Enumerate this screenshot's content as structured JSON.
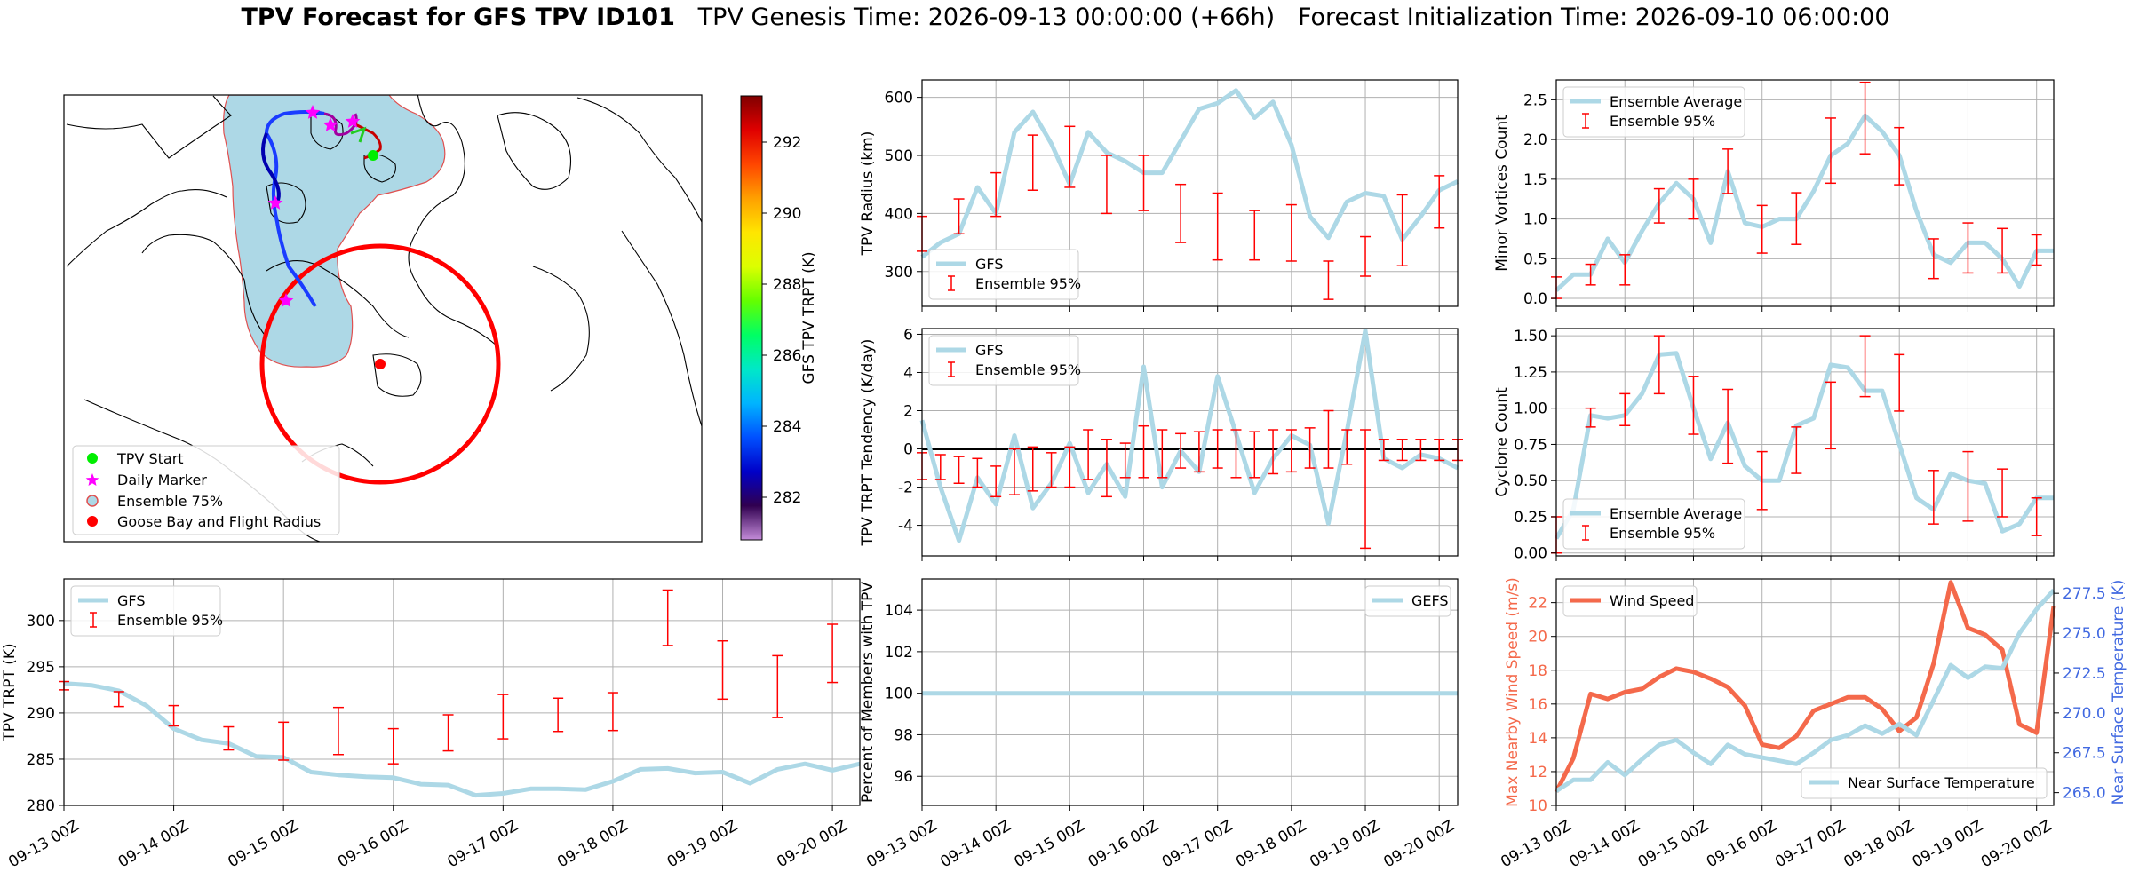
{
  "figure": {
    "title_bold": "TPV Forecast for GFS TPV ID101",
    "title_rest": "TPV Genesis Time: 2026-09-13 00:00:00 (+66h)   Forecast Initialization Time: 2026-09-10 06:00:00"
  },
  "colors": {
    "gfs": "#add8e6",
    "ensemble": "#ff0000",
    "wind": "#f4694b",
    "temp_axis": "#4169e1",
    "map_fill": "#add8e6",
    "track_start": "#00ee00",
    "daily_marker": "#ff00ff",
    "goose_bay": "#ff0000"
  },
  "x_ticks": [
    "09-13 00Z",
    "09-14 00Z",
    "09-15 00Z",
    "09-16 00Z",
    "09-17 00Z",
    "09-18 00Z",
    "09-19 00Z",
    "09-20 00Z"
  ],
  "map": {
    "colorbar": {
      "label": "GFS TPV TRPT (K)",
      "range": [
        280.8,
        293.3
      ],
      "ticks": [
        282,
        284,
        286,
        288,
        290,
        292
      ],
      "colormap": [
        "#c48cd9",
        "#300050",
        "#0000c8",
        "#0050ff",
        "#00b4ff",
        "#00e8c8",
        "#00ff64",
        "#64ff00",
        "#dcff00",
        "#ffe600",
        "#ffa000",
        "#ff4600",
        "#e00000",
        "#800000"
      ]
    },
    "legend": [
      {
        "label": "TPV Start",
        "marker": "circle-green"
      },
      {
        "label": "Daily Marker",
        "marker": "star-magenta"
      },
      {
        "label": "Ensemble 75%",
        "marker": "circle-lightblue"
      },
      {
        "label": "Goose Bay and Flight Radius",
        "marker": "circle-red"
      }
    ]
  },
  "chart_data": [
    {
      "id": "tpv-trpt",
      "type": "line",
      "ylabel": "TPV TRPT (K)",
      "ylim": [
        280,
        304.5
      ],
      "yticks": [
        280,
        285,
        290,
        295,
        300
      ],
      "legend": "top-left",
      "x": [
        0,
        0.25,
        0.5,
        0.75,
        1,
        1.25,
        1.5,
        1.75,
        2,
        2.25,
        2.5,
        2.75,
        3,
        3.25,
        3.5,
        3.75,
        4,
        4.25,
        4.5,
        4.75,
        5,
        5.25,
        5.5,
        5.75,
        6,
        6.25,
        6.5,
        6.75,
        7,
        7.25
      ],
      "series": [
        {
          "name": "GFS",
          "values": [
            293.2,
            293.0,
            292.4,
            290.8,
            288.3,
            287.1,
            286.7,
            285.3,
            285.2,
            283.6,
            283.3,
            283.1,
            283.0,
            282.3,
            282.2,
            281.1,
            281.3,
            281.8,
            281.8,
            281.7,
            282.6,
            283.9,
            284.0,
            283.5,
            283.6,
            282.4,
            283.9,
            284.5,
            283.8,
            284.5
          ]
        }
      ],
      "error_bars": {
        "name": "Ensemble 95%",
        "x": [
          0,
          0.5,
          1,
          1.5,
          2,
          2.5,
          3,
          3.5,
          4,
          4.5,
          5,
          5.5,
          6,
          6.5,
          7
        ],
        "low": [
          292.5,
          290.7,
          288.6,
          286.0,
          284.9,
          285.5,
          284.5,
          285.9,
          287.2,
          288.0,
          288.1,
          297.3,
          291.5,
          289.5,
          293.3
        ],
        "high": [
          293.4,
          292.3,
          290.8,
          288.5,
          289.0,
          290.6,
          288.3,
          289.8,
          292.0,
          291.6,
          292.2,
          303.3,
          297.8,
          296.2,
          299.6
        ]
      }
    },
    {
      "id": "tpv-radius",
      "type": "line",
      "ylabel": "TPV Radius (km)",
      "ylim": [
        240,
        630
      ],
      "yticks": [
        300,
        400,
        500,
        600
      ],
      "legend": "bottom-left",
      "x": [
        0,
        0.25,
        0.5,
        0.75,
        1,
        1.25,
        1.5,
        1.75,
        2,
        2.25,
        2.5,
        2.75,
        3,
        3.25,
        3.5,
        3.75,
        4,
        4.25,
        4.5,
        4.75,
        5,
        5.25,
        5.5,
        5.75,
        6,
        6.25,
        6.5,
        6.75,
        7,
        7.25
      ],
      "series": [
        {
          "name": "GFS",
          "values": [
            325,
            350,
            365,
            445,
            400,
            540,
            575,
            520,
            450,
            540,
            505,
            490,
            470,
            470,
            525,
            580,
            590,
            612,
            565,
            592,
            518,
            395,
            358,
            420,
            435,
            430,
            355,
            395,
            440,
            455
          ]
        }
      ],
      "error_bars": {
        "name": "Ensemble 95%",
        "x": [
          0,
          0.5,
          1,
          1.5,
          2,
          2.5,
          3,
          3.5,
          4,
          4.5,
          5,
          5.5,
          6,
          6.5,
          7
        ],
        "low": [
          335,
          365,
          395,
          440,
          445,
          400,
          405,
          350,
          320,
          320,
          318,
          252,
          292,
          310,
          375
        ],
        "high": [
          395,
          425,
          470,
          535,
          550,
          500,
          500,
          450,
          435,
          405,
          415,
          318,
          360,
          432,
          465
        ]
      }
    },
    {
      "id": "trpt-tendency",
      "type": "line",
      "ylabel": "TPV TRPT Tendency (K/day)",
      "ylim": [
        -5.6,
        6.3
      ],
      "yticks": [
        -4,
        -2,
        0,
        2,
        4,
        6
      ],
      "zero_line": true,
      "legend": "top-left",
      "x": [
        0,
        0.25,
        0.5,
        0.75,
        1,
        1.25,
        1.5,
        1.75,
        2,
        2.25,
        2.5,
        2.75,
        3,
        3.25,
        3.5,
        3.75,
        4,
        4.25,
        4.5,
        4.75,
        5,
        5.25,
        5.5,
        5.75,
        6,
        6.25,
        6.5,
        6.75,
        7,
        7.25
      ],
      "series": [
        {
          "name": "GFS",
          "values": [
            1.5,
            -2.0,
            -4.8,
            -1.5,
            -2.9,
            0.7,
            -3.1,
            -1.8,
            0.3,
            -2.3,
            -0.8,
            -2.5,
            4.3,
            -2.0,
            -0.1,
            -1.2,
            3.8,
            0.8,
            -2.3,
            -0.5,
            0.7,
            0.2,
            -3.9,
            0.9,
            6.2,
            -0.5,
            -1.0,
            -0.3,
            -0.5,
            -1.0
          ]
        }
      ],
      "error_bars": {
        "name": "Ensemble 95%",
        "x": [
          0,
          0.25,
          0.5,
          0.75,
          1,
          1.25,
          1.5,
          1.75,
          2,
          2.25,
          2.5,
          2.75,
          3,
          3.25,
          3.5,
          3.75,
          4,
          4.25,
          4.5,
          4.75,
          5,
          5.25,
          5.5,
          5.75,
          6,
          6.25,
          6.5,
          6.75,
          7,
          7.25
        ],
        "low": [
          -1.6,
          -1.6,
          -1.8,
          -2.0,
          -2.5,
          -2.4,
          -2.2,
          -2.0,
          -2.0,
          -1.6,
          -2.5,
          -1.5,
          -1.5,
          -1.5,
          -1.0,
          -1.2,
          -1.0,
          -1.5,
          -1.5,
          -1.3,
          -1.2,
          -1.0,
          -1.0,
          -0.8,
          -5.2,
          -0.6,
          -0.6,
          -0.6,
          -0.6,
          -0.6
        ],
        "high": [
          -0.2,
          -0.3,
          -0.4,
          -0.5,
          -0.9,
          0.0,
          0.1,
          -0.2,
          0.1,
          1.0,
          0.5,
          0.3,
          1.2,
          1.0,
          0.8,
          0.9,
          1.0,
          1.0,
          0.9,
          1.0,
          1.0,
          1.1,
          2.0,
          1.0,
          1.0,
          0.5,
          0.5,
          0.5,
          0.5,
          0.5
        ]
      }
    },
    {
      "id": "percent-members",
      "type": "line",
      "ylabel": "Percent of Members with TPV",
      "ylim": [
        94.6,
        105.5
      ],
      "yticks": [
        96,
        98,
        100,
        102,
        104
      ],
      "legend": "top-right",
      "x": [
        0,
        7.25
      ],
      "series": [
        {
          "name": "GEFS",
          "values": [
            100,
            100
          ]
        }
      ]
    },
    {
      "id": "minor-vortices",
      "type": "line",
      "ylabel": "Minor Vortices Count",
      "ylim": [
        -0.1,
        2.75
      ],
      "yticks": [
        0.0,
        0.5,
        1.0,
        1.5,
        2.0,
        2.5
      ],
      "legend": "top-left",
      "x": [
        0,
        0.25,
        0.5,
        0.75,
        1,
        1.25,
        1.5,
        1.75,
        2,
        2.25,
        2.5,
        2.75,
        3,
        3.25,
        3.5,
        3.75,
        4,
        4.25,
        4.5,
        4.75,
        5,
        5.25,
        5.5,
        5.75,
        6,
        6.25,
        6.5,
        6.75,
        7,
        7.25
      ],
      "series": [
        {
          "name": "Ensemble Average",
          "values": [
            0.1,
            0.3,
            0.3,
            0.75,
            0.45,
            0.85,
            1.2,
            1.45,
            1.25,
            0.7,
            1.6,
            0.95,
            0.9,
            1.0,
            1.0,
            1.35,
            1.8,
            1.95,
            2.3,
            2.1,
            1.8,
            1.1,
            0.55,
            0.45,
            0.7,
            0.7,
            0.5,
            0.15,
            0.6,
            0.6
          ]
        }
      ],
      "error_bars": {
        "name": "Ensemble 95%",
        "x": [
          0,
          0.5,
          1,
          1.5,
          2,
          2.5,
          3,
          3.5,
          4,
          4.5,
          5,
          5.5,
          6,
          6.5,
          7
        ],
        "low": [
          0.0,
          0.17,
          0.17,
          0.95,
          1.0,
          1.32,
          0.57,
          0.68,
          1.45,
          1.82,
          1.43,
          0.25,
          0.32,
          0.32,
          0.42
        ],
        "high": [
          0.27,
          0.43,
          0.55,
          1.38,
          1.5,
          1.88,
          1.17,
          1.33,
          2.27,
          2.72,
          2.15,
          0.75,
          0.95,
          0.88,
          0.8
        ]
      }
    },
    {
      "id": "cyclone-count",
      "type": "line",
      "ylabel": "Cyclone Count",
      "ylim": [
        -0.02,
        1.55
      ],
      "yticks": [
        0.0,
        0.25,
        0.5,
        0.75,
        1.0,
        1.25,
        1.5
      ],
      "legend": "bottom-left",
      "x": [
        0,
        0.25,
        0.5,
        0.75,
        1,
        1.25,
        1.5,
        1.75,
        2,
        2.25,
        2.5,
        2.75,
        3,
        3.25,
        3.5,
        3.75,
        4,
        4.25,
        4.5,
        4.75,
        5,
        5.25,
        5.5,
        5.75,
        6,
        6.25,
        6.5,
        6.75,
        7,
        7.25
      ],
      "series": [
        {
          "name": "Ensemble Average",
          "values": [
            0.1,
            0.3,
            0.95,
            0.93,
            0.95,
            1.1,
            1.37,
            1.38,
            1.0,
            0.65,
            0.9,
            0.6,
            0.5,
            0.5,
            0.88,
            0.93,
            1.3,
            1.28,
            1.12,
            1.12,
            0.75,
            0.38,
            0.3,
            0.55,
            0.5,
            0.48,
            0.15,
            0.2,
            0.38,
            0.38
          ]
        }
      ],
      "error_bars": {
        "name": "Ensemble 95%",
        "x": [
          0,
          0.5,
          1,
          1.5,
          2,
          2.5,
          3,
          3.5,
          4,
          4.5,
          5,
          5.5,
          6,
          6.5,
          7
        ],
        "low": [
          0.0,
          0.87,
          0.88,
          1.1,
          0.82,
          0.62,
          0.3,
          0.55,
          0.72,
          1.08,
          0.98,
          0.2,
          0.22,
          0.25,
          0.12
        ],
        "high": [
          0.25,
          1.0,
          1.1,
          1.5,
          1.22,
          1.13,
          0.7,
          0.87,
          1.18,
          1.5,
          1.37,
          0.57,
          0.7,
          0.58,
          0.38
        ]
      }
    },
    {
      "id": "wind-temp",
      "type": "line",
      "ylabel": "Max Nearby Wind Speed (m/s)",
      "ylabel_right": "Near Surface Temperature (K)",
      "ylim": [
        10,
        23.4
      ],
      "yticks": [
        10,
        12,
        14,
        16,
        18,
        20,
        22
      ],
      "ylim_right": [
        264.2,
        278.4
      ],
      "yticks_right": [
        265.0,
        267.5,
        270.0,
        272.5,
        275.0,
        277.5
      ],
      "legend": "top-left",
      "legend_right": "bottom-right",
      "x": [
        0,
        0.25,
        0.5,
        0.75,
        1,
        1.25,
        1.5,
        1.75,
        2,
        2.25,
        2.5,
        2.75,
        3,
        3.25,
        3.5,
        3.75,
        4,
        4.25,
        4.5,
        4.75,
        5,
        5.25,
        5.5,
        5.75,
        6,
        6.25,
        6.5,
        6.75,
        7,
        7.25
      ],
      "series": [
        {
          "name": "Wind Speed",
          "axis": "left",
          "values": [
            10.8,
            12.8,
            16.6,
            16.3,
            16.7,
            16.9,
            17.6,
            18.1,
            17.9,
            17.5,
            17.0,
            15.9,
            13.6,
            13.4,
            14.1,
            15.6,
            16.0,
            16.4,
            16.4,
            15.7,
            14.4,
            15.2,
            18.4,
            23.2,
            20.5,
            20.1,
            19.2,
            14.8,
            14.3,
            21.8
          ]
        },
        {
          "name": "Near Surface Temperature",
          "axis": "right",
          "values": [
            265.1,
            265.8,
            265.8,
            266.9,
            266.1,
            267.1,
            268.0,
            268.3,
            267.5,
            266.8,
            268.0,
            267.4,
            267.2,
            267.0,
            266.8,
            267.5,
            268.3,
            268.6,
            269.2,
            268.7,
            269.3,
            268.6,
            270.8,
            273.0,
            272.2,
            272.9,
            272.8,
            275.0,
            276.5,
            277.7
          ]
        }
      ]
    }
  ]
}
